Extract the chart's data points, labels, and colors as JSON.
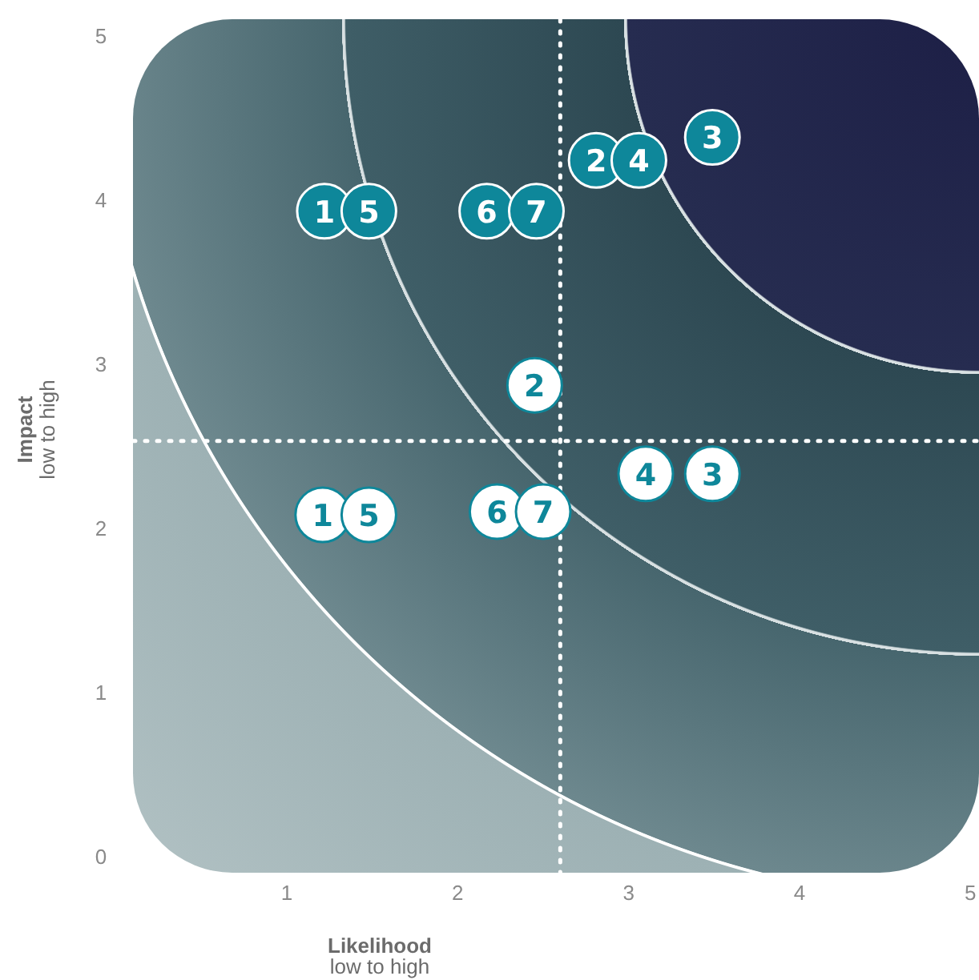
{
  "chart_data": {
    "type": "scatter",
    "xlabel": "Likelihood\nlow to high",
    "ylabel": "Impact\nlow to high",
    "xlim": [
      0.1,
      5.05
    ],
    "ylim": [
      -0.1,
      5.1
    ],
    "xticks": [
      1,
      2,
      3,
      4,
      5
    ],
    "yticks": [
      0,
      1,
      2,
      3,
      4,
      5
    ],
    "grid": false,
    "marker": "circle",
    "ref_lines": [
      {
        "axis": "x",
        "value": 2.6,
        "line_style": "dotted",
        "color": "#ffffff"
      },
      {
        "axis": "y",
        "value": 2.53,
        "line_style": "dotted",
        "color": "#ffffff"
      }
    ],
    "annotations": [
      {
        "text": "1",
        "x": 1.22,
        "y": 3.93
      },
      {
        "text": "5",
        "x": 1.48,
        "y": 3.93
      },
      {
        "text": "6",
        "x": 2.17,
        "y": 3.93
      },
      {
        "text": "7",
        "x": 2.46,
        "y": 3.93
      },
      {
        "text": "2",
        "x": 2.81,
        "y": 4.24
      },
      {
        "text": "4",
        "x": 3.06,
        "y": 4.24
      },
      {
        "text": "3",
        "x": 3.49,
        "y": 4.38
      },
      {
        "text": "1",
        "x": 1.21,
        "y": 2.08
      },
      {
        "text": "5",
        "x": 1.48,
        "y": 2.08
      },
      {
        "text": "6",
        "x": 2.23,
        "y": 2.1
      },
      {
        "text": "7",
        "x": 2.5,
        "y": 2.1
      },
      {
        "text": "2",
        "x": 2.45,
        "y": 2.87
      },
      {
        "text": "4",
        "x": 3.1,
        "y": 2.33
      },
      {
        "text": "3",
        "x": 3.49,
        "y": 2.33
      }
    ],
    "series": [
      {
        "color": "#0e879a",
        "x": [
          1.22,
          1.48,
          2.17,
          2.46,
          2.81,
          3.06,
          3.49
        ],
        "values": [
          3.93,
          3.93,
          3.93,
          3.93,
          4.24,
          4.24,
          4.38
        ]
      },
      {
        "color": "#ffffff",
        "x": [
          1.21,
          1.48,
          2.23,
          2.5,
          2.45,
          3.1,
          3.49
        ],
        "values": [
          2.08,
          2.08,
          2.1,
          2.1,
          2.87,
          2.33,
          2.33
        ]
      }
    ]
  }
}
